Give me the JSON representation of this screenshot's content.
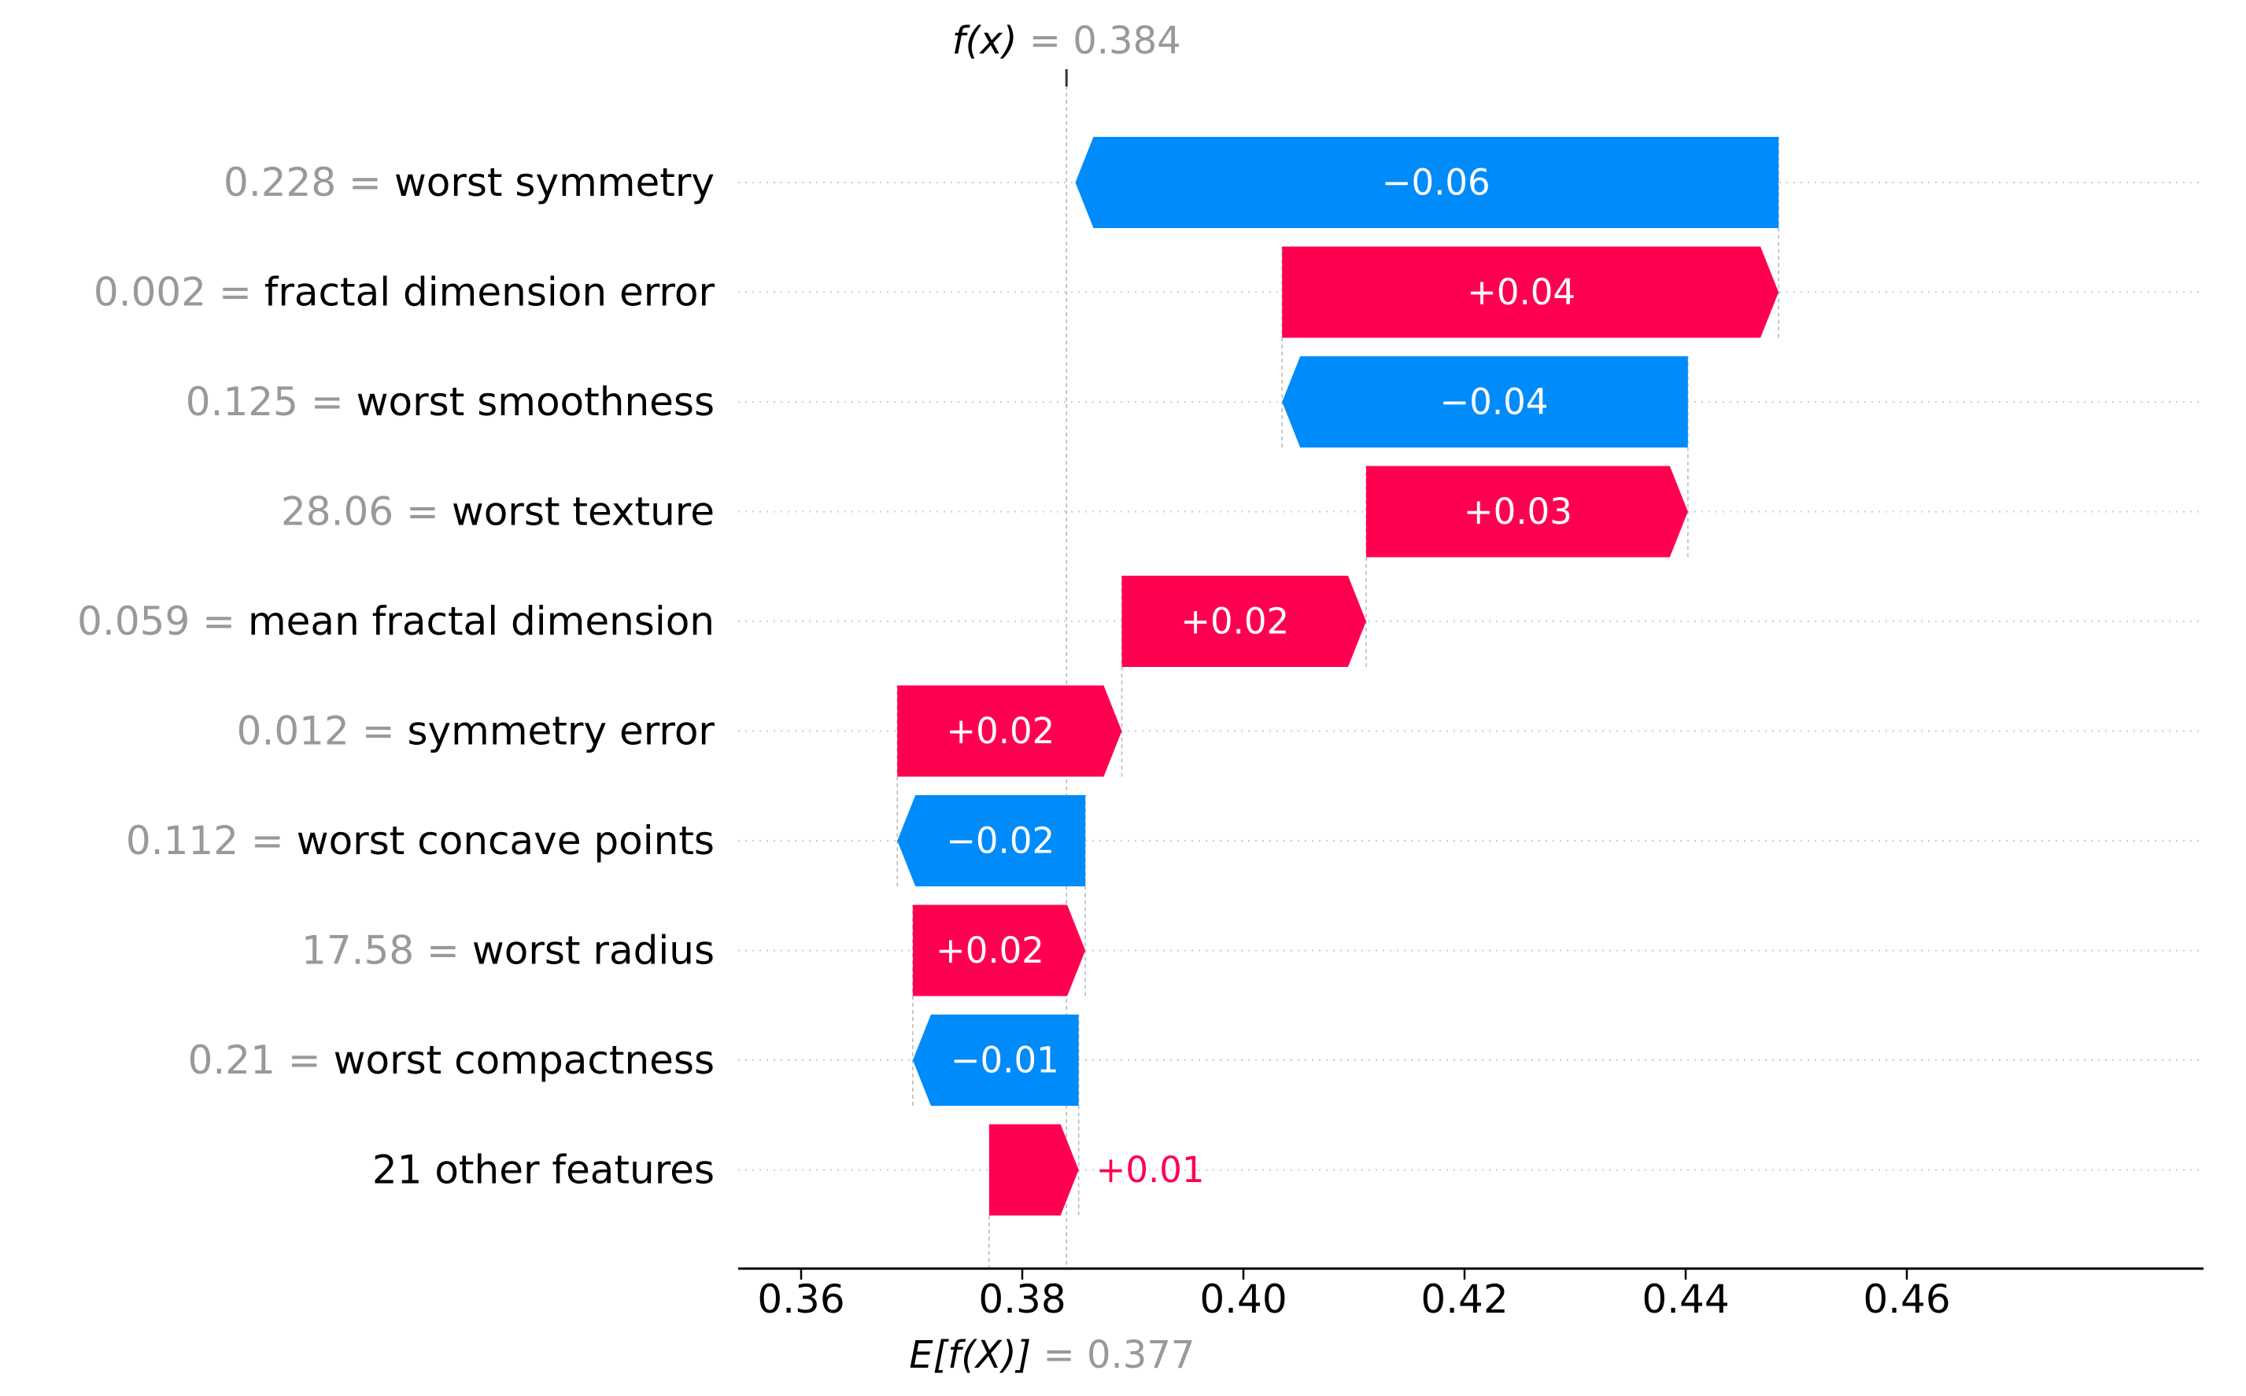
{
  "chart_data": {
    "type": "waterfall",
    "base_label": "E[f(X)]",
    "base_value": 0.377,
    "base_value_label": "0.377",
    "output_label": "f(x)",
    "output_value": 0.384,
    "output_value_label": "0.384",
    "xlim": [
      0.355,
      0.4605
    ],
    "xticks": [
      0.36,
      0.38,
      0.4,
      0.42,
      0.44,
      0.46
    ],
    "xtick_labels": [
      "0.36",
      "0.38",
      "0.40",
      "0.42",
      "0.44",
      "0.46"
    ],
    "features": [
      {
        "value": "0.228",
        "name": "worst symmetry",
        "contribution": -0.0636,
        "label": "−0.06"
      },
      {
        "value": "0.002",
        "name": "fractal dimension error",
        "contribution": 0.0449,
        "label": "+0.04"
      },
      {
        "value": "0.125",
        "name": "worst smoothness",
        "contribution": -0.0367,
        "label": "−0.04"
      },
      {
        "value": "28.06",
        "name": "worst texture",
        "contribution": 0.0291,
        "label": "+0.03"
      },
      {
        "value": "0.059",
        "name": "mean fractal dimension",
        "contribution": 0.0221,
        "label": "+0.02"
      },
      {
        "value": "0.012",
        "name": "symmetry error",
        "contribution": 0.0203,
        "label": "+0.02"
      },
      {
        "value": "0.112",
        "name": "worst concave points",
        "contribution": -0.017,
        "label": "−0.02"
      },
      {
        "value": "17.58",
        "name": "worst radius",
        "contribution": 0.0156,
        "label": "+0.02"
      },
      {
        "value": "0.21",
        "name": "worst compactness",
        "contribution": -0.015,
        "label": "−0.01"
      },
      {
        "value": "",
        "name": "21 other features",
        "contribution": 0.0081,
        "label": "+0.01"
      }
    ],
    "colors": {
      "positive": "#ff0051",
      "negative": "#008bfb",
      "muted": "#999999",
      "text": "#000000"
    },
    "grid": "dotted row guides"
  }
}
